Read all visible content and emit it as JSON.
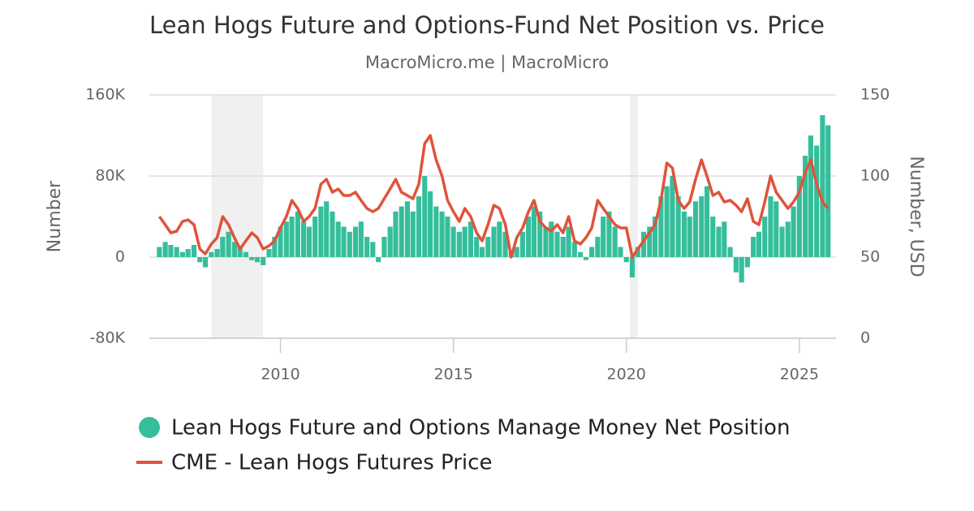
{
  "chart_data": {
    "type": "bar-line",
    "title": "Lean Hogs Future and Options-Fund Net Position vs. Price",
    "subtitle": "MacroMicro.me | MacroMicro",
    "y_label": "Number",
    "y2_label": "Number, USD",
    "x": [
      2006.5,
      2006.67,
      2006.83,
      2007,
      2007.17,
      2007.33,
      2007.5,
      2007.67,
      2007.83,
      2008,
      2008.17,
      2008.33,
      2008.5,
      2008.67,
      2008.83,
      2009,
      2009.17,
      2009.33,
      2009.5,
      2009.67,
      2009.83,
      2010,
      2010.17,
      2010.33,
      2010.5,
      2010.67,
      2010.83,
      2011,
      2011.17,
      2011.33,
      2011.5,
      2011.67,
      2011.83,
      2012,
      2012.17,
      2012.33,
      2012.5,
      2012.67,
      2012.83,
      2013,
      2013.17,
      2013.33,
      2013.5,
      2013.67,
      2013.83,
      2014,
      2014.17,
      2014.33,
      2014.5,
      2014.67,
      2014.83,
      2015,
      2015.17,
      2015.33,
      2015.5,
      2015.67,
      2015.83,
      2016,
      2016.17,
      2016.33,
      2016.5,
      2016.67,
      2016.83,
      2017,
      2017.17,
      2017.33,
      2017.5,
      2017.67,
      2017.83,
      2018,
      2018.17,
      2018.33,
      2018.5,
      2018.67,
      2018.83,
      2019,
      2019.17,
      2019.33,
      2019.5,
      2019.67,
      2019.83,
      2020,
      2020.17,
      2020.33,
      2020.5,
      2020.67,
      2020.83,
      2021,
      2021.17,
      2021.33,
      2021.5,
      2021.67,
      2021.83,
      2022,
      2022.17,
      2022.33,
      2022.5,
      2022.67,
      2022.83,
      2023,
      2023.17,
      2023.33,
      2023.5,
      2023.67,
      2023.83,
      2024,
      2024.17,
      2024.33,
      2024.5,
      2024.67,
      2024.83,
      2025,
      2025.17,
      2025.33,
      2025.5,
      2025.67,
      2025.83
    ],
    "series": [
      {
        "name": "Lean Hogs Future and Options Manage Money Net Position",
        "color": "#35be9b",
        "kind": "bar",
        "values": [
          10000,
          15000,
          12000,
          10000,
          5000,
          8000,
          12000,
          -5000,
          -10000,
          5000,
          8000,
          20000,
          25000,
          15000,
          10000,
          5000,
          -3000,
          -5000,
          -8000,
          8000,
          20000,
          30000,
          35000,
          40000,
          45000,
          35000,
          30000,
          40000,
          50000,
          55000,
          45000,
          35000,
          30000,
          25000,
          30000,
          35000,
          20000,
          15000,
          -5000,
          20000,
          30000,
          45000,
          50000,
          55000,
          45000,
          60000,
          80000,
          65000,
          50000,
          45000,
          40000,
          30000,
          25000,
          30000,
          35000,
          20000,
          10000,
          20000,
          30000,
          35000,
          25000,
          5000,
          10000,
          25000,
          40000,
          50000,
          45000,
          30000,
          35000,
          25000,
          20000,
          30000,
          15000,
          5000,
          -3000,
          10000,
          20000,
          40000,
          45000,
          30000,
          10000,
          -5000,
          -20000,
          10000,
          25000,
          30000,
          40000,
          60000,
          70000,
          80000,
          60000,
          45000,
          40000,
          55000,
          60000,
          70000,
          40000,
          30000,
          35000,
          10000,
          -15000,
          -25000,
          -10000,
          20000,
          25000,
          40000,
          60000,
          55000,
          30000,
          35000,
          50000,
          80000,
          100000,
          120000,
          110000,
          140000,
          130000
        ]
      },
      {
        "name": "CME - Lean Hogs Futures Price",
        "color": "#e0533a",
        "kind": "line",
        "axis": "y2",
        "values": [
          75,
          70,
          65,
          66,
          72,
          73,
          70,
          55,
          52,
          58,
          62,
          75,
          70,
          62,
          55,
          60,
          65,
          62,
          55,
          57,
          60,
          68,
          75,
          85,
          80,
          72,
          75,
          80,
          95,
          98,
          90,
          92,
          88,
          88,
          90,
          85,
          80,
          78,
          80,
          86,
          92,
          98,
          90,
          88,
          86,
          95,
          120,
          125,
          110,
          100,
          85,
          78,
          72,
          80,
          75,
          65,
          60,
          70,
          82,
          80,
          70,
          50,
          62,
          68,
          78,
          85,
          72,
          68,
          66,
          70,
          65,
          75,
          60,
          58,
          62,
          68,
          85,
          80,
          75,
          70,
          68,
          68,
          50,
          55,
          60,
          65,
          70,
          85,
          108,
          105,
          85,
          80,
          84,
          98,
          110,
          100,
          88,
          90,
          84,
          85,
          82,
          78,
          86,
          72,
          70,
          84,
          100,
          90,
          85,
          80,
          84,
          90,
          102,
          110,
          95,
          84,
          80
        ]
      }
    ],
    "shaded_ranges": [
      [
        2008.0,
        2009.5
      ],
      [
        2020.1,
        2020.33
      ]
    ],
    "xlim": [
      2006.21,
      2026.06
    ],
    "xticks": [
      2010,
      2015,
      2020,
      2025
    ],
    "ylim": [
      -80000,
      160000
    ],
    "yticks": [
      {
        "value": -80000,
        "label": "-80K"
      },
      0,
      {
        "value": 80000,
        "label": "80K"
      },
      {
        "value": 160000,
        "label": "160K"
      }
    ],
    "y2lim": [
      0,
      150
    ],
    "y2ticks": [
      0,
      50,
      100,
      150
    ],
    "grid": true,
    "legend": "bottom"
  }
}
